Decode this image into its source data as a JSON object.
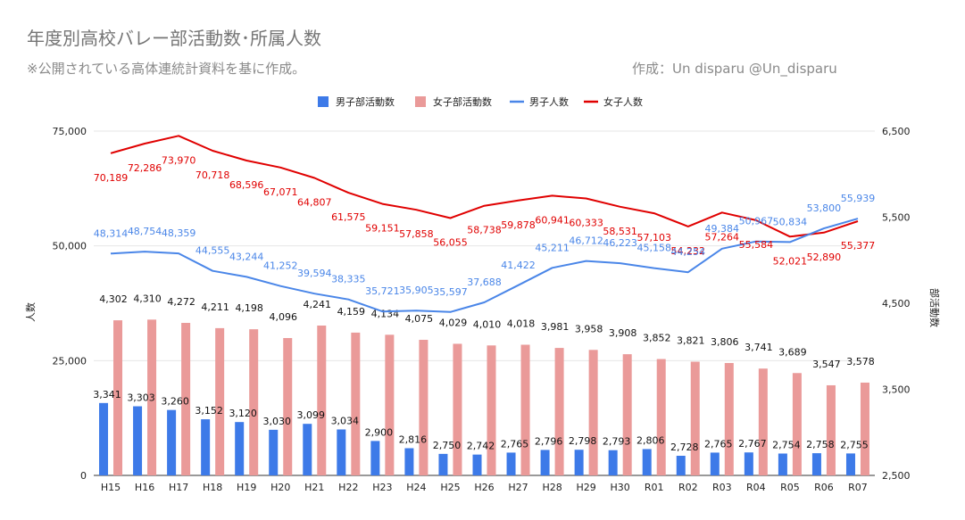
{
  "title": "年度別高校バレー部活動数･所属人数",
  "subtitle": "※公開されている高体連統計資料を基に作成。",
  "credit": "作成：Un disparu @Un_disparu",
  "colors": {
    "male_bar": "#3d7ae8",
    "female_bar": "#ea9a99",
    "male_line": "#4a86e8",
    "female_line": "#e00000",
    "grid": "#e6e6e6"
  },
  "chart_data": {
    "type": "bar+line",
    "categories": [
      "H15",
      "H16",
      "H17",
      "H18",
      "H19",
      "H20",
      "H21",
      "H22",
      "H23",
      "H24",
      "H25",
      "H26",
      "H27",
      "H28",
      "H29",
      "H30",
      "R01",
      "R02",
      "R03",
      "R04",
      "R05",
      "R06",
      "R07"
    ],
    "left_axis": {
      "label": "人数",
      "ylim": [
        0,
        75000
      ],
      "ticks": [
        "0",
        "25,000",
        "50,000",
        "75,000"
      ],
      "tick_values": [
        0,
        25000,
        50000,
        75000
      ]
    },
    "right_axis": {
      "label": "部活動数",
      "ylim": [
        2500,
        6500
      ],
      "ticks": [
        "2,500",
        "3,500",
        "4,500",
        "5,500",
        "6,500"
      ],
      "tick_values": [
        2500,
        3500,
        4500,
        5500,
        6500
      ]
    },
    "legend": {
      "position": "top"
    },
    "series": [
      {
        "name": "男子部活動数",
        "kind": "bar",
        "axis": "right",
        "color": "#3d7ae8",
        "values": [
          3341,
          3303,
          3260,
          3152,
          3120,
          3030,
          3099,
          3034,
          2900,
          2816,
          2750,
          2742,
          2765,
          2796,
          2798,
          2793,
          2806,
          2728,
          2765,
          2767,
          2754,
          2758,
          2755
        ],
        "labels": [
          "3,341",
          "3,303",
          "3,260",
          "3,152",
          "3,120",
          "3,030",
          "3,099",
          "3,034",
          "2,900",
          "2,816",
          "2,750",
          "2,742",
          "2,765",
          "2,796",
          "2,798",
          "2,793",
          "2,806",
          "2,728",
          "2,765",
          "2,767",
          "2,754",
          "2,758",
          "2,755"
        ]
      },
      {
        "name": "女子部活動数",
        "kind": "bar",
        "axis": "right",
        "color": "#ea9a99",
        "values": [
          4302,
          4310,
          4272,
          4211,
          4198,
          4096,
          4241,
          4159,
          4134,
          4075,
          4029,
          4010,
          4018,
          3981,
          3958,
          3908,
          3852,
          3821,
          3806,
          3741,
          3689,
          3547,
          3578
        ],
        "labels": [
          "4,302",
          "4,310",
          "4,272",
          "4,211",
          "4,198",
          "4,096",
          "4,241",
          "4,159",
          "4,134",
          "4,075",
          "4,029",
          "4,010",
          "4,018",
          "3,981",
          "3,958",
          "3,908",
          "3,852",
          "3,821",
          "3,806",
          "3,741",
          "3,689",
          "3,547",
          "3,578"
        ]
      },
      {
        "name": "男子人数",
        "kind": "line",
        "axis": "left",
        "color": "#4a86e8",
        "values": [
          48314,
          48754,
          48359,
          44555,
          43244,
          41252,
          39594,
          38335,
          35721,
          35905,
          35597,
          37688,
          41422,
          45211,
          46712,
          46223,
          45158,
          44254,
          49384,
          50967,
          50834,
          53800,
          55939
        ],
        "labels": [
          "48,314",
          "48,754",
          "48,359",
          "44,555",
          "43,244",
          "41,252",
          "39,594",
          "38,335",
          "35,721",
          "35,905",
          "35,597",
          "37,688",
          "41,422",
          "45,211",
          "46,712",
          "46,223",
          "45,158",
          "44,254",
          "49,384",
          "50,967",
          "50,834",
          "53,800",
          "55,939"
        ]
      },
      {
        "name": "女子人数",
        "kind": "line",
        "axis": "left",
        "color": "#e00000",
        "values": [
          70189,
          72286,
          73970,
          70718,
          68596,
          67071,
          64807,
          61575,
          59151,
          57858,
          56055,
          58738,
          59878,
          60941,
          60333,
          58531,
          57103,
          54232,
          57264,
          55584,
          52021,
          52890,
          55377
        ],
        "labels": [
          "70,189",
          "72,286",
          "73,970",
          "70,718",
          "68,596",
          "67,071",
          "64,807",
          "61,575",
          "59,151",
          "57,858",
          "56,055",
          "58,738",
          "59,878",
          "60,941",
          "60,333",
          "58,531",
          "57,103",
          "54,232",
          "57,264",
          "55,584",
          "52,021",
          "52,890",
          "55,377"
        ]
      }
    ]
  }
}
